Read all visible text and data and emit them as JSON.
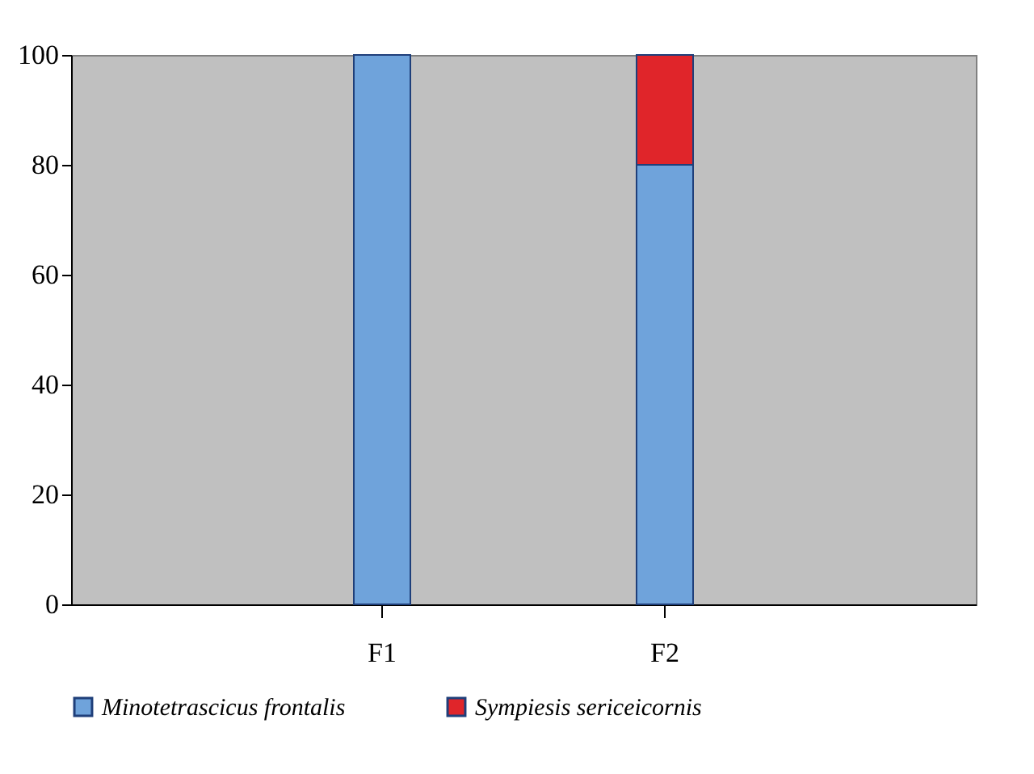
{
  "chart_data": {
    "type": "bar",
    "stacked": true,
    "categories": [
      "F1",
      "F2"
    ],
    "series": [
      {
        "name": "Minotetrascicus frontalis",
        "color": "#6fa3db",
        "values": [
          100,
          80
        ]
      },
      {
        "name": "Sympiesis sericeicornis",
        "color": "#e0252a",
        "values": [
          null,
          20
        ]
      }
    ],
    "ylim": [
      0,
      100
    ],
    "yticks": [
      0,
      20,
      40,
      60,
      80,
      100
    ],
    "grid": false,
    "legend": "bottom"
  }
}
